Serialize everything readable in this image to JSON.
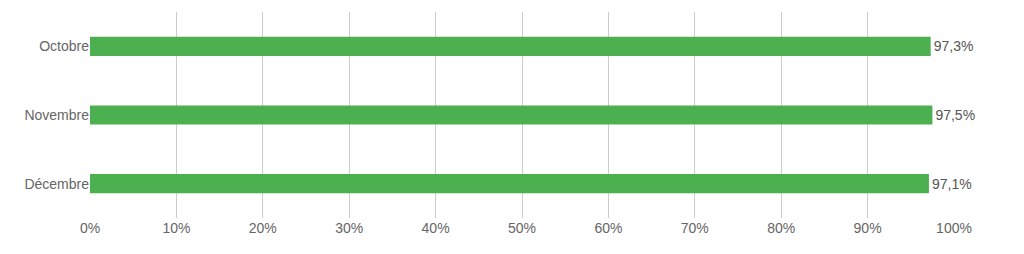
{
  "chart_data": {
    "type": "bar",
    "orientation": "horizontal",
    "categories": [
      "Octobre",
      "Novembre",
      "Décembre"
    ],
    "values": [
      97.3,
      97.5,
      97.1
    ],
    "value_labels": [
      "97,3%",
      "97,5%",
      "97,1%"
    ],
    "data_labels": true,
    "color": "#4caf50",
    "xlim": [
      0,
      100
    ],
    "xticks": [
      {
        "value": 0,
        "label": "0%"
      },
      {
        "value": 10,
        "label": "10%"
      },
      {
        "value": 20,
        "label": "20%"
      },
      {
        "value": 30,
        "label": "30%"
      },
      {
        "value": 40,
        "label": "40%"
      },
      {
        "value": 50,
        "label": "50%"
      },
      {
        "value": 60,
        "label": "60%"
      },
      {
        "value": 70,
        "label": "70%"
      },
      {
        "value": 80,
        "label": "80%"
      },
      {
        "value": 90,
        "label": "90%"
      },
      {
        "value": 100,
        "label": "100%"
      }
    ],
    "grid": true
  }
}
